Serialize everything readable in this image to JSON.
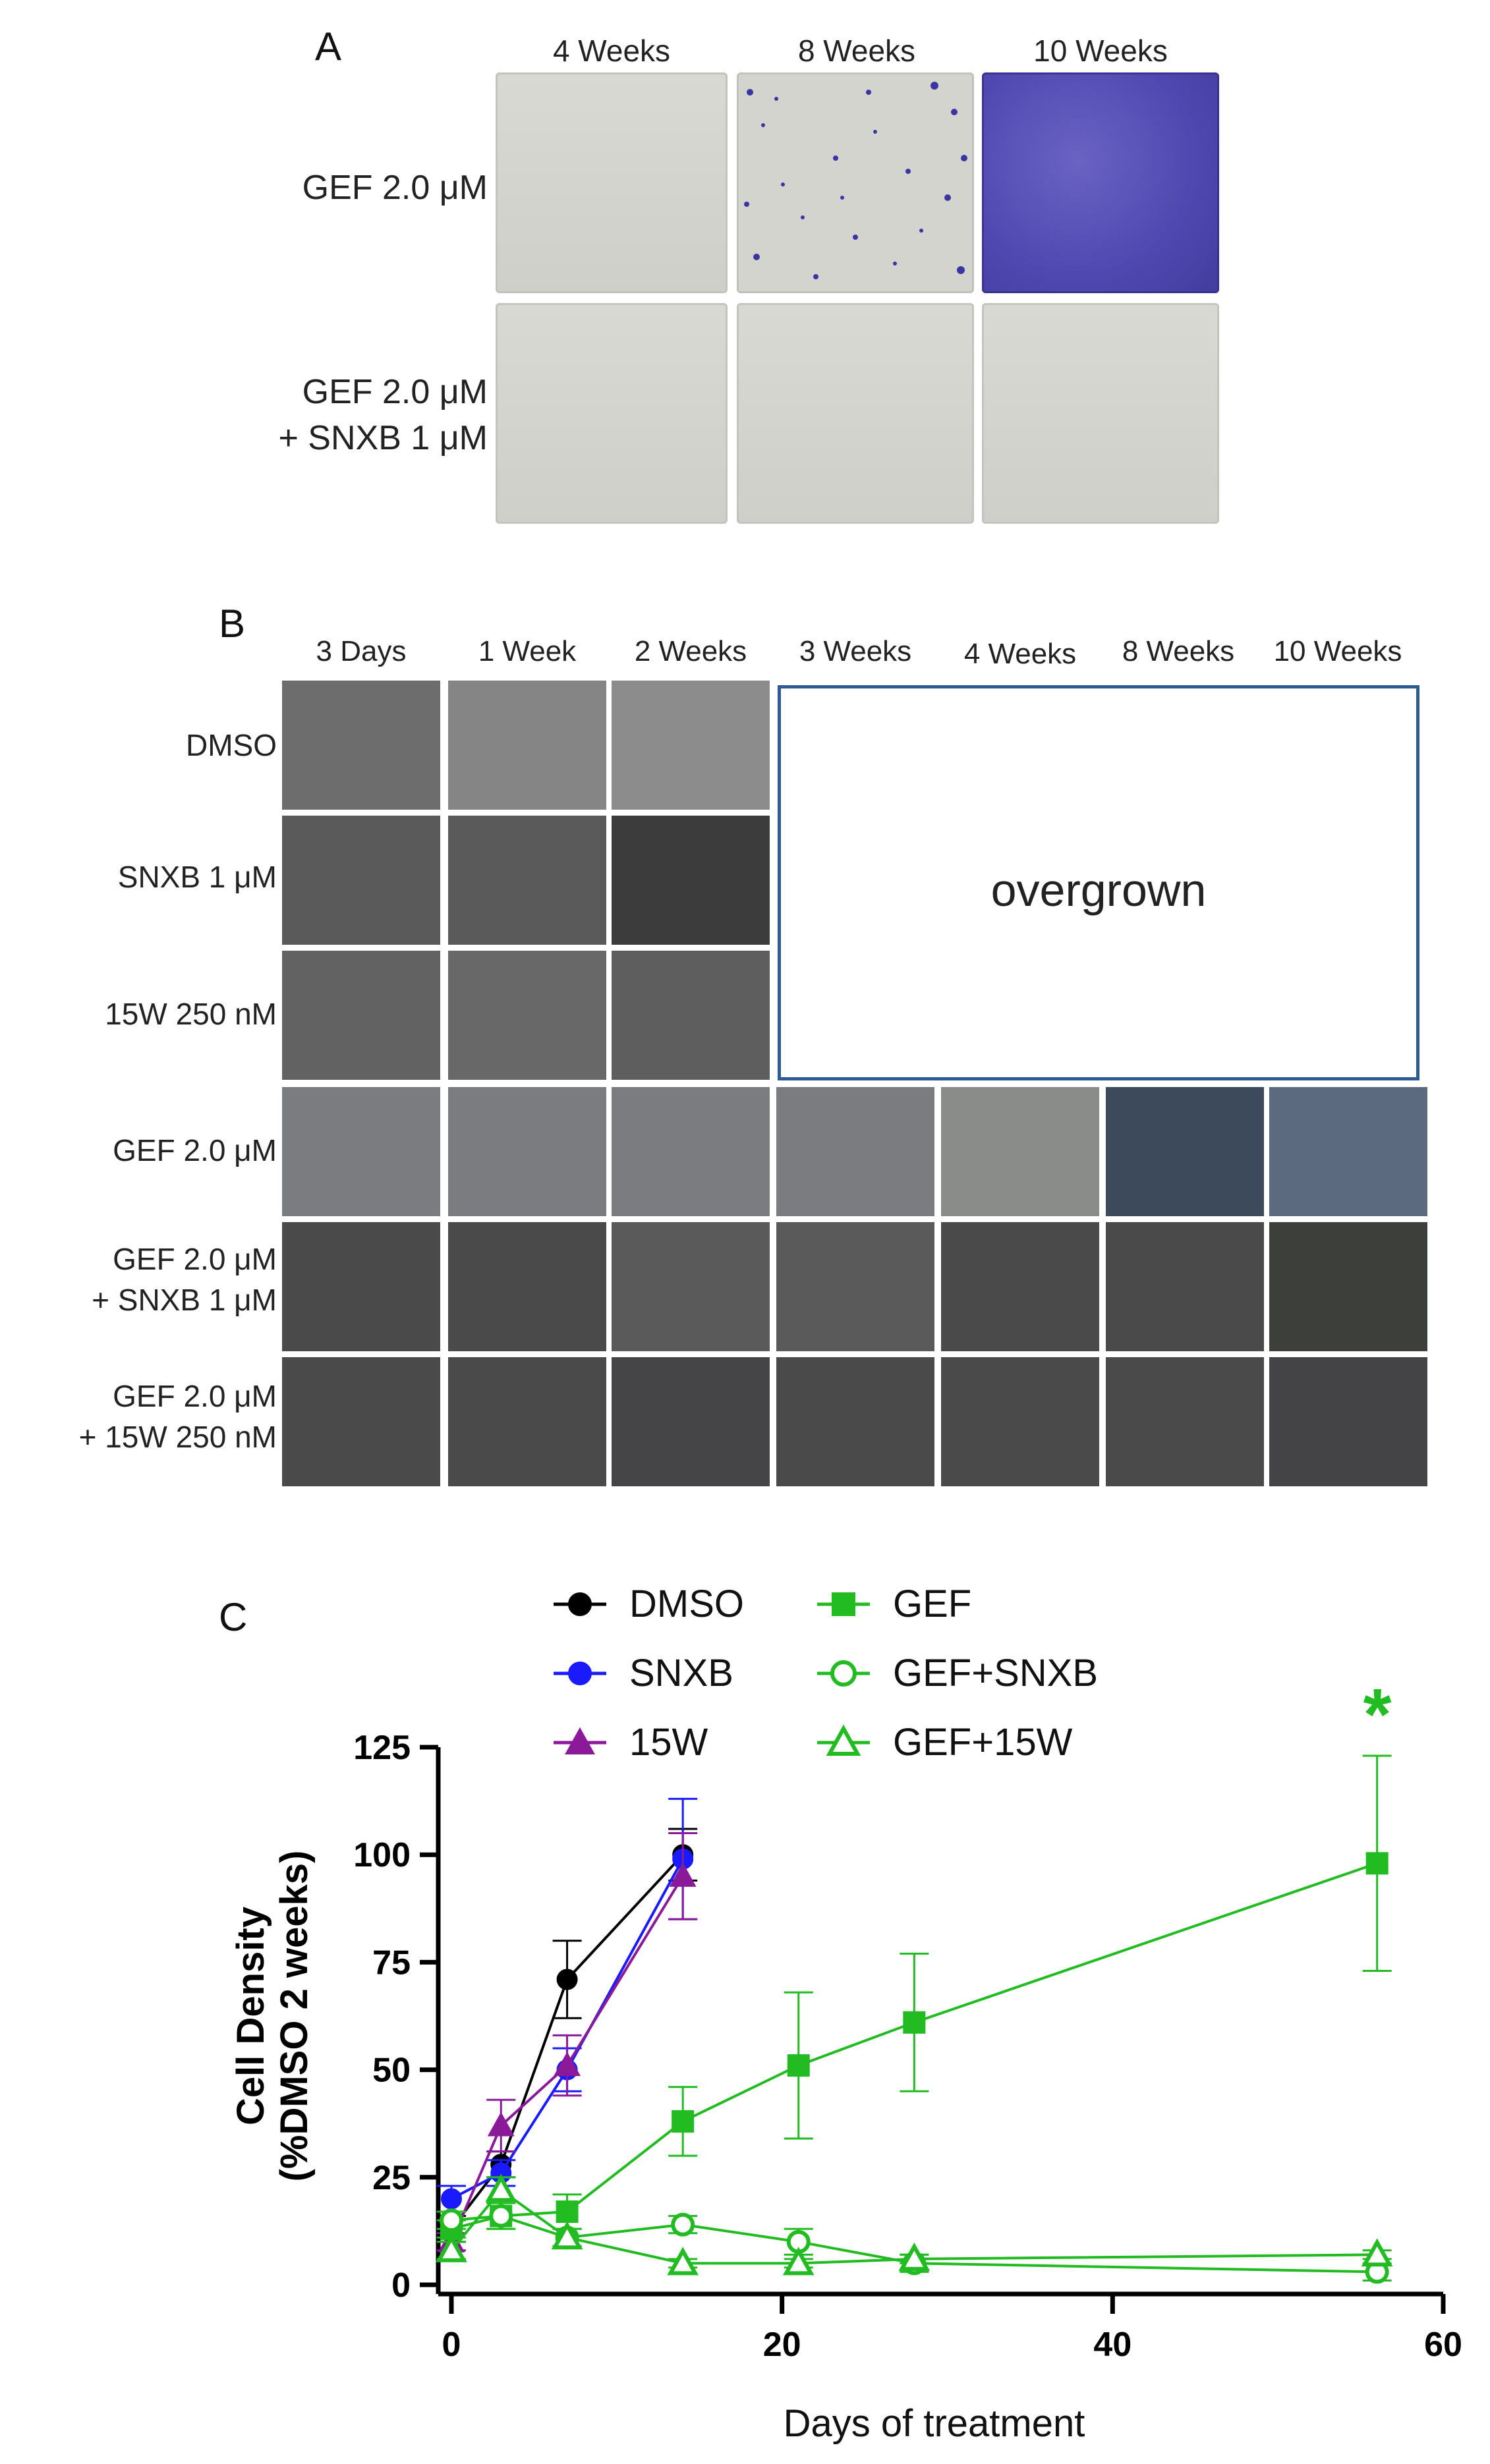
{
  "panel_a": {
    "letter": "A",
    "columns": [
      "4 Weeks",
      "8 Weeks",
      "10 Weeks"
    ],
    "rows": [
      {
        "label_lines": [
          "GEF 2.0 μM"
        ]
      },
      {
        "label_lines": [
          "GEF 2.0 μM",
          "+ SNXB 1 μM"
        ]
      }
    ]
  },
  "panel_b": {
    "letter": "B",
    "columns": [
      "3 Days",
      "1 Week",
      "2 Weeks",
      "3 Weeks",
      "4 Weeks",
      "8 Weeks",
      "10 Weeks"
    ],
    "rows": [
      {
        "label_lines": [
          "DMSO"
        ]
      },
      {
        "label_lines": [
          "SNXB 1 μM"
        ]
      },
      {
        "label_lines": [
          "15W 250 nM"
        ]
      },
      {
        "label_lines": [
          "GEF 2.0 μM"
        ]
      },
      {
        "label_lines": [
          "GEF 2.0 μM",
          "+ SNXB 1 μM"
        ]
      },
      {
        "label_lines": [
          "GEF 2.0 μM",
          "+ 15W 250 nM"
        ]
      }
    ],
    "overgrown_label": "overgrown"
  },
  "panel_c": {
    "letter": "C",
    "significance_marker": "*",
    "colors": {
      "DMSO": "#000000",
      "SNXB": "#1a1aff",
      "15W": "#8b1a9b",
      "GEF": "#22bb22"
    }
  },
  "chart_data": {
    "type": "line",
    "xlabel": "Days of treatment",
    "ylabel": "Cell Density (%DMSO 2 weeks)",
    "ylabel_lines": [
      "Cell Density",
      "(%DMSO 2 weeks)"
    ],
    "xlim": [
      0,
      60
    ],
    "ylim": [
      0,
      125
    ],
    "xticks": [
      0,
      20,
      40,
      60
    ],
    "yticks": [
      0,
      25,
      50,
      75,
      100,
      125
    ],
    "legend_position": "top",
    "series": [
      {
        "name": "DMSO",
        "color": "#000000",
        "marker": "circle-filled",
        "x": [
          0,
          3,
          7,
          14
        ],
        "y": [
          13,
          28,
          71,
          100
        ],
        "err": [
          3,
          3,
          9,
          6
        ]
      },
      {
        "name": "SNXB",
        "color": "#1a1aff",
        "marker": "circle-filled",
        "x": [
          0,
          3,
          7,
          14
        ],
        "y": [
          20,
          26,
          50,
          99
        ],
        "err": [
          3,
          3,
          5,
          14
        ]
      },
      {
        "name": "15W",
        "color": "#8b1a9b",
        "marker": "triangle-filled",
        "x": [
          0,
          3,
          7,
          14
        ],
        "y": [
          10,
          37,
          51,
          95
        ],
        "err": [
          2,
          6,
          7,
          10
        ]
      },
      {
        "name": "GEF",
        "color": "#22bb22",
        "marker": "square-filled",
        "x": [
          0,
          3,
          7,
          14,
          21,
          28,
          56
        ],
        "y": [
          13,
          16,
          17,
          38,
          51,
          61,
          98
        ],
        "err": [
          2,
          3,
          4,
          8,
          17,
          16,
          25
        ]
      },
      {
        "name": "GEF+SNXB",
        "color": "#22bb22",
        "marker": "circle-open",
        "x": [
          0,
          3,
          7,
          14,
          21,
          28,
          56
        ],
        "y": [
          15,
          16,
          11,
          14,
          10,
          5,
          3
        ],
        "err": [
          2,
          3,
          2,
          2,
          3,
          2,
          2
        ]
      },
      {
        "name": "GEF+15W",
        "color": "#22bb22",
        "marker": "triangle-open",
        "x": [
          0,
          3,
          7,
          14,
          21,
          28,
          56
        ],
        "y": [
          8,
          22,
          11,
          5,
          5,
          6,
          7
        ],
        "err": [
          2,
          3,
          2,
          1,
          1,
          1,
          1
        ]
      }
    ]
  }
}
